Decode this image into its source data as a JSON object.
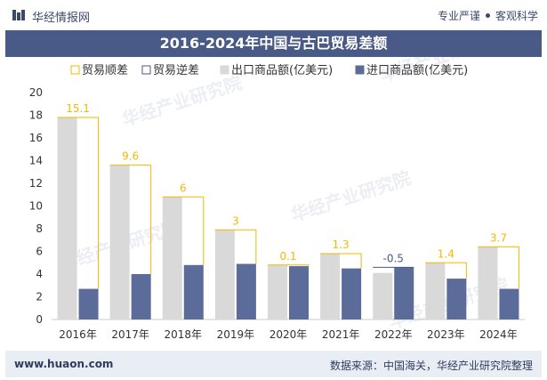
{
  "header": {
    "brand": "华经情报网",
    "slogan_1": "专业严谨",
    "slogan_2": "客观科学"
  },
  "title": "2016-2024年中国与古巴贸易差额",
  "footer": {
    "url": "www.huaon.com",
    "source": "数据来源：中国海关，华经产业研究院整理"
  },
  "watermark": "华经产业研究院",
  "colors": {
    "title_bg": "#4a5a86",
    "surplus": "#f5b800",
    "deficit": "#4a5a86",
    "export": "#d9d9d9",
    "import": "#5b6b9a",
    "footer_bg": "#e9edf4"
  },
  "chart_data": {
    "type": "bar",
    "categories": [
      "2016年",
      "2017年",
      "2018年",
      "2019年",
      "2020年",
      "2021年",
      "2022年",
      "2023年",
      "2024年"
    ],
    "ylim": [
      0,
      20
    ],
    "yticks": [
      0,
      2,
      4,
      6,
      8,
      10,
      12,
      14,
      16,
      18,
      20
    ],
    "legend": [
      "贸易顺差",
      "贸易逆差",
      "出口商品额(亿美元)",
      "进口商品额(亿美元)"
    ],
    "legend_position": "top",
    "series": [
      {
        "name": "出口商品额(亿美元)",
        "values": [
          17.8,
          13.6,
          10.8,
          7.9,
          4.8,
          5.8,
          4.1,
          5.0,
          6.4
        ]
      },
      {
        "name": "进口商品额(亿美元)",
        "values": [
          2.7,
          4.0,
          4.8,
          4.9,
          4.7,
          4.5,
          4.6,
          3.6,
          2.7
        ]
      }
    ],
    "balance": [
      15.1,
      9.6,
      6,
      3,
      0.1,
      1.3,
      -0.5,
      1.4,
      3.7
    ],
    "balance_labels": [
      "15.1",
      "9.6",
      "6",
      "3",
      "0.1",
      "1.3",
      "-0.5",
      "1.4",
      "3.7"
    ]
  }
}
